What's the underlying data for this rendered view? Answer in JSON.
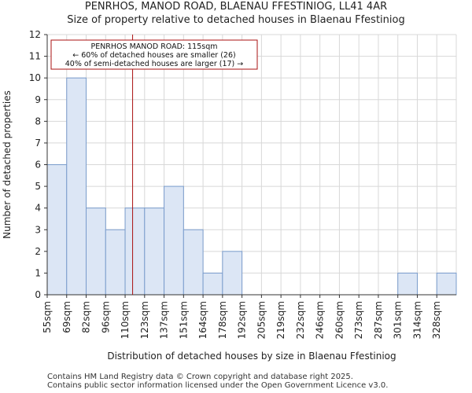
{
  "chart_data": {
    "type": "bar",
    "title_line1": "PENRHOS, MANOD ROAD, BLAENAU FFESTINIOG, LL41 4AR",
    "title_line2": "Size of property relative to detached houses in Blaenau Ffestiniog",
    "xlabel": "Distribution of detached houses by size in Blaenau Ffestiniog",
    "ylabel": "Number of detached properties",
    "categories": [
      "55sqm",
      "69sqm",
      "82sqm",
      "96sqm",
      "110sqm",
      "123sqm",
      "137sqm",
      "151sqm",
      "164sqm",
      "178sqm",
      "192sqm",
      "205sqm",
      "219sqm",
      "232sqm",
      "246sqm",
      "260sqm",
      "273sqm",
      "287sqm",
      "301sqm",
      "314sqm",
      "328sqm"
    ],
    "values": [
      6,
      10,
      4,
      3,
      4,
      4,
      5,
      3,
      1,
      2,
      0,
      0,
      0,
      0,
      0,
      0,
      0,
      0,
      1,
      0,
      1
    ],
    "ylim": [
      0,
      12
    ],
    "yticks": [
      0,
      1,
      2,
      3,
      4,
      5,
      6,
      7,
      8,
      9,
      10,
      11,
      12
    ],
    "grid": true,
    "marker": {
      "value_sqm": 115,
      "label_line1": "PENRHOS MANOD ROAD: 115sqm",
      "label_line2": "← 60% of detached houses are smaller (26)",
      "label_line3": "40% of semi-detached houses are larger (17) →"
    },
    "bar_color": "#dce6f5",
    "bar_edge_color": "#7a9ccc",
    "marker_color": "#aa1111"
  },
  "footer": {
    "line1": "Contains HM Land Registry data © Crown copyright and database right 2025.",
    "line2": "Contains public sector information licensed under the Open Government Licence v3.0."
  }
}
